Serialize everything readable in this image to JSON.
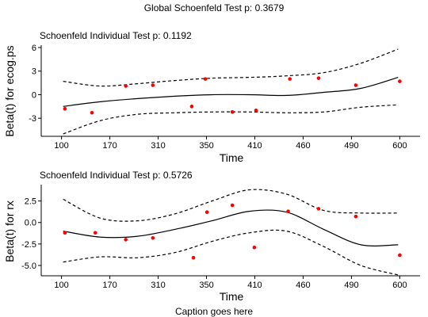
{
  "global_title": "Global Schoenfeld Test p: 0.3679",
  "caption": "Caption goes here",
  "chart_data": [
    {
      "type": "line",
      "title": "Schoenfeld Individual Test p: 0.1192",
      "xlabel": "Time",
      "ylabel": "Beta(t) for ecog.ps",
      "x_ticks": [
        "100",
        "170",
        "310",
        "350",
        "410",
        "460",
        "490",
        "600"
      ],
      "ylim": [
        -5.3,
        6.3
      ],
      "y_ticks": [
        6,
        3,
        0,
        -3
      ],
      "y_tick_labels": [
        "6",
        "3",
        "0",
        "-3"
      ],
      "grid": false,
      "series": [
        {
          "role": "fit",
          "style": "solid",
          "x": [
            0,
            1,
            2,
            3,
            4,
            5,
            6,
            7,
            8,
            9
          ],
          "y": [
            -1.5,
            -0.9,
            -0.5,
            -0.2,
            0,
            0,
            -0.1,
            0.3,
            0.8,
            2.2
          ]
        },
        {
          "role": "upper_band",
          "style": "dashed",
          "x": [
            0,
            1,
            2,
            3,
            4,
            5,
            6,
            7,
            8,
            9
          ],
          "y": [
            1.7,
            1.1,
            1.4,
            1.8,
            2.1,
            2.2,
            2.4,
            2.8,
            4.0,
            5.8
          ]
        },
        {
          "role": "lower_band",
          "style": "dashed",
          "x": [
            0,
            1,
            2,
            3,
            4,
            5,
            6,
            7,
            8,
            9
          ],
          "y": [
            -5.0,
            -3.3,
            -2.5,
            -2.3,
            -2.2,
            -2.2,
            -2.3,
            -2.2,
            -1.6,
            -1.3
          ]
        }
      ],
      "points": {
        "color": "#ff0000",
        "x": [
          0.1,
          0.9,
          1.9,
          2.7,
          3.85,
          4.25,
          5.05,
          5.75,
          6.75,
          7.6,
          8.7,
          10.0
        ],
        "y": [
          -1.8,
          -2.3,
          1.1,
          1.2,
          -1.5,
          2.0,
          -2.2,
          -2.0,
          2.0,
          2.1,
          1.2,
          1.7
        ]
      }
    },
    {
      "type": "line",
      "title": "Schoenfeld Individual Test p: 0.5726",
      "xlabel": "Time",
      "ylabel": "Beta(t) for rx",
      "x_ticks": [
        "100",
        "170",
        "310",
        "350",
        "410",
        "460",
        "490",
        "600"
      ],
      "ylim": [
        -6.2,
        4.4
      ],
      "y_ticks": [
        2.5,
        0.0,
        -2.5,
        -5.0
      ],
      "y_tick_labels": [
        "2.5",
        "0.0",
        "-2.5",
        "-5.0"
      ],
      "grid": false,
      "series": [
        {
          "role": "fit",
          "style": "solid",
          "x": [
            0,
            1,
            2,
            3,
            4,
            5,
            6,
            7,
            8,
            9
          ],
          "y": [
            -1.0,
            -1.7,
            -1.6,
            -0.8,
            0.2,
            1.3,
            1.2,
            -0.8,
            -2.6,
            -2.6
          ]
        },
        {
          "role": "upper_band",
          "style": "dashed",
          "x": [
            0,
            1,
            2,
            3,
            4,
            5,
            6,
            7,
            8,
            9
          ],
          "y": [
            2.7,
            0.5,
            0.2,
            1.0,
            2.5,
            3.8,
            3.3,
            1.4,
            1.1,
            1.1
          ]
        },
        {
          "role": "lower_band",
          "style": "dashed",
          "x": [
            0,
            1,
            2,
            3,
            4,
            5,
            6,
            7,
            8,
            9
          ],
          "y": [
            -4.6,
            -4.0,
            -4.1,
            -3.5,
            -2.2,
            -1.2,
            -1.0,
            -2.8,
            -5.0,
            -6.1
          ]
        }
      ],
      "points": {
        "color": "#ff0000",
        "x": [
          0.1,
          1.0,
          1.9,
          2.7,
          3.9,
          4.3,
          5.05,
          5.7,
          6.7,
          7.6,
          8.7,
          10.0
        ],
        "y": [
          -1.2,
          -1.2,
          -2.0,
          -1.8,
          -4.1,
          1.2,
          2.0,
          -2.9,
          1.3,
          1.6,
          0.7,
          -3.8
        ]
      }
    }
  ]
}
